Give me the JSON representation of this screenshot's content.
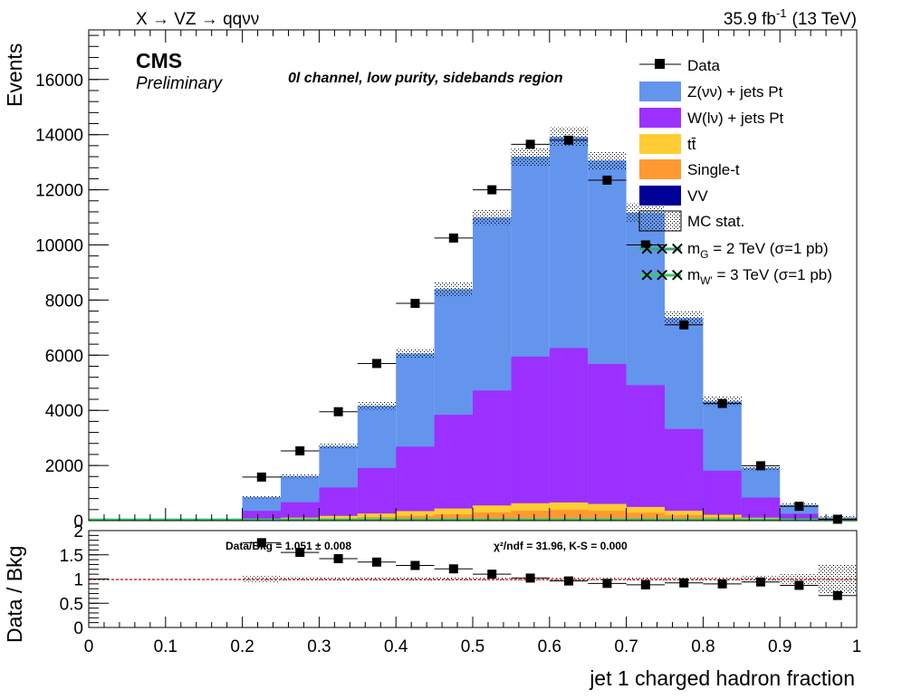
{
  "header": {
    "process": "X → VZ → qqνν",
    "lumi": "35.9 fb",
    "lumi_sup": "-1",
    "energy": "(13 TeV)",
    "cms": "CMS",
    "preliminary": "Preliminary",
    "region": "0l channel, low purity, sidebands region"
  },
  "legend": {
    "data": "Data",
    "znn": "Z(νν) + jets Pt",
    "wlnu": "W(lν) + jets Pt",
    "ttbar": "tt̄",
    "singlet": "Single-t",
    "vv": "VV",
    "mcstat": "MC stat.",
    "sig1": "m",
    "sig1_sub": "G",
    "sig1_rest": " = 2 TeV (σ=1 pb)",
    "sig2": "m",
    "sig2_sub": "W'",
    "sig2_rest": " = 3 TeV (σ=1 pb)"
  },
  "ratio_text": {
    "databkg": "Data/Bkg = 1.051 ± 0.008",
    "chi2": "χ²/ndf = 31.96,   K-S = 0.000"
  },
  "colors": {
    "znn": "#6495ED",
    "wlnu": "#9B30FF",
    "ttbar": "#FFCC33",
    "singlet": "#FF9933",
    "vv": "#000099",
    "sig1": "#33AA77",
    "sig2": "#33CC66",
    "ratio_line": "#CC0000"
  },
  "chart_data": {
    "type": "bar",
    "stacked": true,
    "xlabel": "jet 1 charged hadron fraction",
    "ylabel": "Events",
    "ratio_ylabel": "Data / Bkg",
    "xlim": [
      0,
      1
    ],
    "ylim": [
      0,
      17800
    ],
    "ratio_ylim": [
      0,
      2
    ],
    "x_ticks": [
      "0",
      "0.1",
      "0.2",
      "0.3",
      "0.4",
      "0.5",
      "0.6",
      "0.7",
      "0.8",
      "0.9",
      "1"
    ],
    "y_ticks": [
      "0",
      "2000",
      "4000",
      "6000",
      "8000",
      "10000",
      "12000",
      "14000",
      "16000"
    ],
    "ratio_y_ticks": [
      "0",
      "0.5",
      "1",
      "1.5",
      "2"
    ],
    "bin_edges": [
      0.2,
      0.25,
      0.3,
      0.35,
      0.4,
      0.45,
      0.5,
      0.55,
      0.6,
      0.65,
      0.7,
      0.75,
      0.8,
      0.85,
      0.9,
      0.95,
      1.0
    ],
    "series": [
      {
        "name": "VV",
        "color_key": "vv",
        "values": [
          5,
          8,
          12,
          18,
          25,
          30,
          40,
          50,
          60,
          55,
          45,
          35,
          22,
          12,
          5,
          2
        ]
      },
      {
        "name": "Single-t",
        "color_key": "singlet",
        "values": [
          20,
          40,
          70,
          110,
          150,
          200,
          260,
          310,
          330,
          300,
          240,
          170,
          100,
          50,
          20,
          5
        ]
      },
      {
        "name": "tt̄",
        "color_key": "ttbar",
        "values": [
          30,
          60,
          90,
          130,
          170,
          210,
          250,
          270,
          270,
          250,
          210,
          150,
          90,
          45,
          15,
          5
        ]
      },
      {
        "name": "W(lν) + jets Pt",
        "color_key": "wlnu",
        "values": [
          300,
          560,
          1030,
          1650,
          2340,
          3400,
          4170,
          5320,
          5600,
          5080,
          4420,
          2970,
          1600,
          730,
          210,
          40
        ]
      },
      {
        "name": "Z(νν) + jets Pt",
        "color_key": "znn",
        "values": [
          500,
          950,
          1500,
          2260,
          3380,
          4560,
          6280,
          7250,
          7660,
          7380,
          6260,
          4030,
          2520,
          1080,
          320,
          70
        ]
      }
    ],
    "data": {
      "name": "Data",
      "x": [
        0.225,
        0.275,
        0.325,
        0.375,
        0.425,
        0.475,
        0.525,
        0.575,
        0.625,
        0.675,
        0.725,
        0.775,
        0.825,
        0.875,
        0.925,
        0.975
      ],
      "y": [
        1580,
        2530,
        3950,
        5700,
        7880,
        10250,
        12000,
        13650,
        13800,
        12350,
        10000,
        7100,
        4250,
        1990,
        520,
        50
      ]
    },
    "mc_stat_rel": [
      0.06,
      0.05,
      0.04,
      0.035,
      0.03,
      0.03,
      0.025,
      0.025,
      0.025,
      0.025,
      0.03,
      0.035,
      0.04,
      0.06,
      0.1,
      0.3
    ],
    "ratio": {
      "name": "Data / Bkg",
      "x": [
        0.225,
        0.275,
        0.325,
        0.375,
        0.425,
        0.475,
        0.525,
        0.575,
        0.625,
        0.675,
        0.725,
        0.775,
        0.825,
        0.875,
        0.925,
        0.975
      ],
      "y": [
        1.75,
        1.55,
        1.42,
        1.35,
        1.28,
        1.21,
        1.1,
        1.02,
        0.96,
        0.91,
        0.88,
        0.92,
        0.9,
        0.94,
        0.87,
        0.66
      ]
    },
    "signals": [
      {
        "name": "m_G = 2 TeV (σ=1 pb)",
        "color_key": "sig1",
        "level": 0
      },
      {
        "name": "m_W' = 3 TeV (σ=1 pb)",
        "color_key": "sig2",
        "level": 0
      }
    ]
  }
}
